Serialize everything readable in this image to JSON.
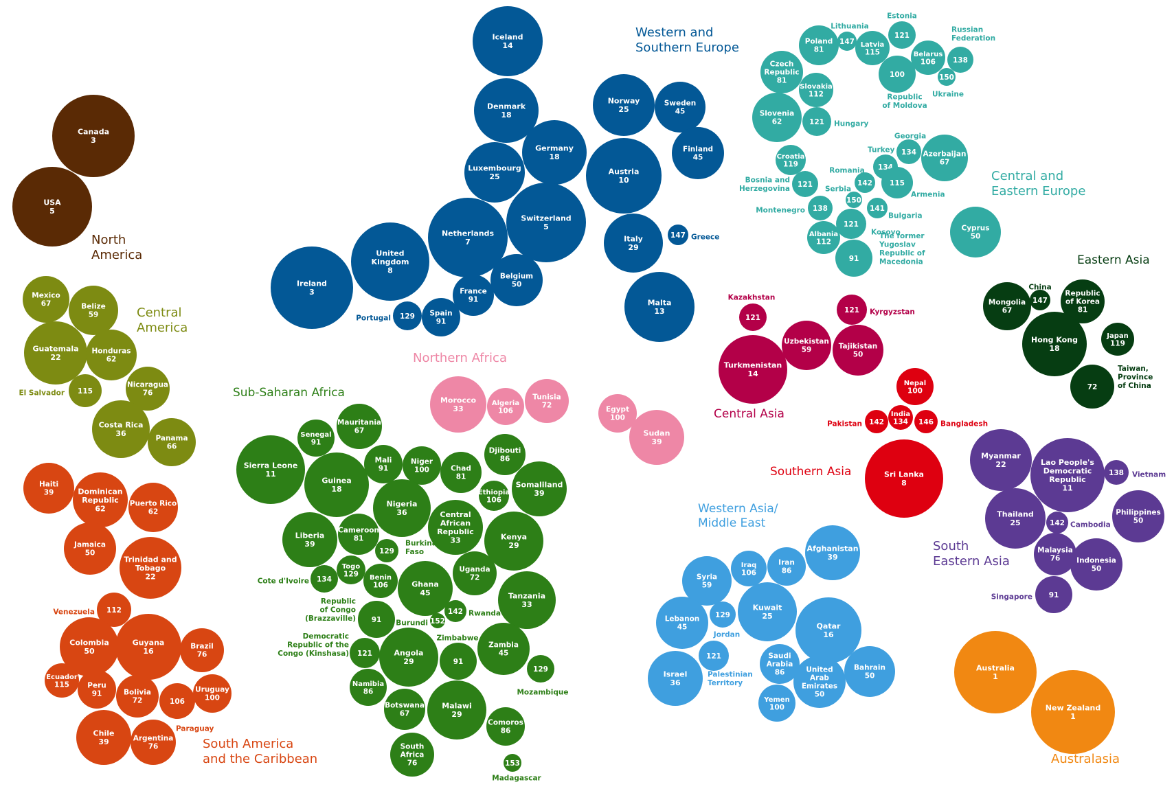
{
  "chart_data": {
    "type": "bubble-cluster",
    "value_note": "",
    "regions": [
      {
        "key": "north_america",
        "title": [
          "North",
          "America"
        ],
        "color": "#5a2a05"
      },
      {
        "key": "central_america",
        "title": [
          "Central",
          "America"
        ],
        "color": "#7d8b12"
      },
      {
        "key": "south_america",
        "title": [
          "South America",
          "and the Caribbean"
        ],
        "color": "#d84612"
      },
      {
        "key": "western_europe",
        "title": [
          "Western and",
          "Southern Europe"
        ],
        "color": "#035896"
      },
      {
        "key": "central_eastern_europe",
        "title": [
          "Central and",
          "Eastern Europe"
        ],
        "color": "#32aba3"
      },
      {
        "key": "sub_saharan_africa",
        "title": [
          "Sub-Saharan Africa"
        ],
        "color": "#2d7f17"
      },
      {
        "key": "northern_africa",
        "title": [
          "Northern Africa"
        ],
        "color": "#ee87a6"
      },
      {
        "key": "central_asia",
        "title": [
          "Central Asia"
        ],
        "color": "#b30048"
      },
      {
        "key": "southern_asia",
        "title": [
          "Southern Asia"
        ],
        "color": "#de0010"
      },
      {
        "key": "eastern_asia",
        "title": [
          "Eastern Asia"
        ],
        "color": "#063d12"
      },
      {
        "key": "south_eastern_asia",
        "title": [
          "South",
          "Eastern Asia"
        ],
        "color": "#5c3a93"
      },
      {
        "key": "western_asia",
        "title": [
          "Western Asia/",
          "Middle East"
        ],
        "color": "#3f9fdf"
      },
      {
        "key": "australasia",
        "title": [
          "Australasia"
        ],
        "color": "#f18812"
      }
    ],
    "countries": [
      {
        "region": "north_america",
        "name": "Canada",
        "value": 3
      },
      {
        "region": "north_america",
        "name": "USA",
        "value": 5
      },
      {
        "region": "central_america",
        "name": "Mexico",
        "value": 67
      },
      {
        "region": "central_america",
        "name": "Belize",
        "value": 59
      },
      {
        "region": "central_america",
        "name": "Guatemala",
        "value": 22
      },
      {
        "region": "central_america",
        "name": "Honduras",
        "value": 62
      },
      {
        "region": "central_america",
        "name": "El Salvador",
        "value": 115
      },
      {
        "region": "central_america",
        "name": "Nicaragua",
        "value": 76
      },
      {
        "region": "central_america",
        "name": "Costa Rica",
        "value": 36
      },
      {
        "region": "central_america",
        "name": "Panama",
        "value": 66
      },
      {
        "region": "south_america",
        "name": "Haiti",
        "value": 39
      },
      {
        "region": "south_america",
        "name": "Dominican Republic",
        "value": 62
      },
      {
        "region": "south_america",
        "name": "Puerto Rico",
        "value": 62
      },
      {
        "region": "south_america",
        "name": "Jamaica",
        "value": 50
      },
      {
        "region": "south_america",
        "name": "Trinidad and Tobago",
        "value": 22
      },
      {
        "region": "south_america",
        "name": "Venezuela",
        "value": 112
      },
      {
        "region": "south_america",
        "name": "Colombia",
        "value": 50
      },
      {
        "region": "south_america",
        "name": "Guyana",
        "value": 16
      },
      {
        "region": "south_america",
        "name": "Brazil",
        "value": 76
      },
      {
        "region": "south_america",
        "name": "Ecuador",
        "value": 115
      },
      {
        "region": "south_america",
        "name": "Peru",
        "value": 91
      },
      {
        "region": "south_america",
        "name": "Bolivia",
        "value": 72
      },
      {
        "region": "south_america",
        "name": "Paraguay",
        "value": 106
      },
      {
        "region": "south_america",
        "name": "Uruguay",
        "value": 100
      },
      {
        "region": "south_america",
        "name": "Chile",
        "value": 39
      },
      {
        "region": "south_america",
        "name": "Argentina",
        "value": 76
      },
      {
        "region": "western_europe",
        "name": "Iceland",
        "value": 14
      },
      {
        "region": "western_europe",
        "name": "Denmark",
        "value": 18
      },
      {
        "region": "western_europe",
        "name": "Germany",
        "value": 18
      },
      {
        "region": "western_europe",
        "name": "Luxembourg",
        "value": 25
      },
      {
        "region": "western_europe",
        "name": "Switzerland",
        "value": 5
      },
      {
        "region": "western_europe",
        "name": "Netherlands",
        "value": 7
      },
      {
        "region": "western_europe",
        "name": "United Kingdom",
        "value": 8
      },
      {
        "region": "western_europe",
        "name": "Ireland",
        "value": 3
      },
      {
        "region": "western_europe",
        "name": "Belgium",
        "value": 50
      },
      {
        "region": "western_europe",
        "name": "France",
        "value": 91
      },
      {
        "region": "western_europe",
        "name": "Spain",
        "value": 91
      },
      {
        "region": "western_europe",
        "name": "Portugal",
        "value": 129
      },
      {
        "region": "western_europe",
        "name": "Norway",
        "value": 25
      },
      {
        "region": "western_europe",
        "name": "Sweden",
        "value": 45
      },
      {
        "region": "western_europe",
        "name": "Finland",
        "value": 45
      },
      {
        "region": "western_europe",
        "name": "Austria",
        "value": 10
      },
      {
        "region": "western_europe",
        "name": "Italy",
        "value": 29
      },
      {
        "region": "western_europe",
        "name": "Greece",
        "value": 147
      },
      {
        "region": "western_europe",
        "name": "Malta",
        "value": 13
      },
      {
        "region": "central_eastern_europe",
        "name": "Lithuania",
        "value": 147
      },
      {
        "region": "central_eastern_europe",
        "name": "Estonia",
        "value": 121
      },
      {
        "region": "central_eastern_europe",
        "name": "Poland",
        "value": 81
      },
      {
        "region": "central_eastern_europe",
        "name": "Latvia",
        "value": 115
      },
      {
        "region": "central_eastern_europe",
        "name": "Russian Federation",
        "value": 138
      },
      {
        "region": "central_eastern_europe",
        "name": "Belarus",
        "value": 106
      },
      {
        "region": "central_eastern_europe",
        "name": "Czech Republic",
        "value": 81
      },
      {
        "region": "central_eastern_europe",
        "name": "Republic of Moldova",
        "value": 100
      },
      {
        "region": "central_eastern_europe",
        "name": "Ukraine",
        "value": 150
      },
      {
        "region": "central_eastern_europe",
        "name": "Slovakia",
        "value": 112
      },
      {
        "region": "central_eastern_europe",
        "name": "Slovenia",
        "value": 62
      },
      {
        "region": "central_eastern_europe",
        "name": "Hungary",
        "value": 121
      },
      {
        "region": "central_eastern_europe",
        "name": "Georgia",
        "value": 134
      },
      {
        "region": "central_eastern_europe",
        "name": "Turkey",
        "value": 134
      },
      {
        "region": "central_eastern_europe",
        "name": "Azerbaijan",
        "value": 67
      },
      {
        "region": "central_eastern_europe",
        "name": "Croatia",
        "value": 119
      },
      {
        "region": "central_eastern_europe",
        "name": "Romania",
        "value": 142
      },
      {
        "region": "central_eastern_europe",
        "name": "Armenia",
        "value": 115
      },
      {
        "region": "central_eastern_europe",
        "name": "Bosnia and Herzegovina",
        "value": 121
      },
      {
        "region": "central_eastern_europe",
        "name": "Serbia",
        "value": 150
      },
      {
        "region": "central_eastern_europe",
        "name": "Bulgaria",
        "value": 141
      },
      {
        "region": "central_eastern_europe",
        "name": "Montenegro",
        "value": 138
      },
      {
        "region": "central_eastern_europe",
        "name": "Kosovo",
        "value": 121
      },
      {
        "region": "central_eastern_europe",
        "name": "Albania",
        "value": 112
      },
      {
        "region": "central_eastern_europe",
        "name": "The former Yugoslav Republic of Macedonia",
        "value": 91
      },
      {
        "region": "central_eastern_europe",
        "name": "Cyprus",
        "value": 50
      },
      {
        "region": "sub_saharan_africa",
        "name": "Senegal",
        "value": 91
      },
      {
        "region": "sub_saharan_africa",
        "name": "Mauritania",
        "value": 67
      },
      {
        "region": "sub_saharan_africa",
        "name": "Sierra Leone",
        "value": 11
      },
      {
        "region": "sub_saharan_africa",
        "name": "Guinea",
        "value": 18
      },
      {
        "region": "sub_saharan_africa",
        "name": "Mali",
        "value": 91
      },
      {
        "region": "sub_saharan_africa",
        "name": "Niger",
        "value": 100
      },
      {
        "region": "sub_saharan_africa",
        "name": "Chad",
        "value": 81
      },
      {
        "region": "sub_saharan_africa",
        "name": "Djibouti",
        "value": 86
      },
      {
        "region": "sub_saharan_africa",
        "name": "Ethiopia",
        "value": 106
      },
      {
        "region": "sub_saharan_africa",
        "name": "Somaliland",
        "value": 39
      },
      {
        "region": "sub_saharan_africa",
        "name": "Nigeria",
        "value": 36
      },
      {
        "region": "sub_saharan_africa",
        "name": "Central African Republic",
        "value": 33
      },
      {
        "region": "sub_saharan_africa",
        "name": "Liberia",
        "value": 39
      },
      {
        "region": "sub_saharan_africa",
        "name": "Cameroon",
        "value": 81
      },
      {
        "region": "sub_saharan_africa",
        "name": "Burkina Faso",
        "value": 129
      },
      {
        "region": "sub_saharan_africa",
        "name": "Kenya",
        "value": 29
      },
      {
        "region": "sub_saharan_africa",
        "name": "Cote d'Ivoire",
        "value": 134
      },
      {
        "region": "sub_saharan_africa",
        "name": "Togo",
        "value": 129
      },
      {
        "region": "sub_saharan_africa",
        "name": "Benin",
        "value": 106
      },
      {
        "region": "sub_saharan_africa",
        "name": "Ghana",
        "value": 45
      },
      {
        "region": "sub_saharan_africa",
        "name": "Uganda",
        "value": 72
      },
      {
        "region": "sub_saharan_africa",
        "name": "Tanzania",
        "value": 33
      },
      {
        "region": "sub_saharan_africa",
        "name": "Rwanda",
        "value": 142
      },
      {
        "region": "sub_saharan_africa",
        "name": "Republic of Congo (Brazzaville)",
        "value": 91
      },
      {
        "region": "sub_saharan_africa",
        "name": "Burundi",
        "value": 152
      },
      {
        "region": "sub_saharan_africa",
        "name": "Democratic Republic of the Congo (Kinshasa)",
        "value": 121
      },
      {
        "region": "sub_saharan_africa",
        "name": "Angola",
        "value": 29
      },
      {
        "region": "sub_saharan_africa",
        "name": "Zimbabwe",
        "value": 91
      },
      {
        "region": "sub_saharan_africa",
        "name": "Zambia",
        "value": 45
      },
      {
        "region": "sub_saharan_africa",
        "name": "Mozambique",
        "value": 129
      },
      {
        "region": "sub_saharan_africa",
        "name": "Namibia",
        "value": 86
      },
      {
        "region": "sub_saharan_africa",
        "name": "Botswana",
        "value": 67
      },
      {
        "region": "sub_saharan_africa",
        "name": "Malawi",
        "value": 29
      },
      {
        "region": "sub_saharan_africa",
        "name": "Comoros",
        "value": 86
      },
      {
        "region": "sub_saharan_africa",
        "name": "South Africa",
        "value": 76
      },
      {
        "region": "sub_saharan_africa",
        "name": "Madagascar",
        "value": 153
      },
      {
        "region": "northern_africa",
        "name": "Morocco",
        "value": 33
      },
      {
        "region": "northern_africa",
        "name": "Algeria",
        "value": 106
      },
      {
        "region": "northern_africa",
        "name": "Tunisia",
        "value": 72
      },
      {
        "region": "northern_africa",
        "name": "Egypt",
        "value": 100
      },
      {
        "region": "northern_africa",
        "name": "Sudan",
        "value": 39
      },
      {
        "region": "central_asia",
        "name": "Kazakhstan",
        "value": 121
      },
      {
        "region": "central_asia",
        "name": "Kyrgyzstan",
        "value": 121
      },
      {
        "region": "central_asia",
        "name": "Uzbekistan",
        "value": 59
      },
      {
        "region": "central_asia",
        "name": "Tajikistan",
        "value": 50
      },
      {
        "region": "central_asia",
        "name": "Turkmenistan",
        "value": 14
      },
      {
        "region": "southern_asia",
        "name": "Nepal",
        "value": 100
      },
      {
        "region": "southern_asia",
        "name": "Pakistan",
        "value": 142
      },
      {
        "region": "southern_asia",
        "name": "India",
        "value": 134
      },
      {
        "region": "southern_asia",
        "name": "Bangladesh",
        "value": 146
      },
      {
        "region": "southern_asia",
        "name": "Sri Lanka",
        "value": 8
      },
      {
        "region": "eastern_asia",
        "name": "China",
        "value": 147
      },
      {
        "region": "eastern_asia",
        "name": "Mongolia",
        "value": 67
      },
      {
        "region": "eastern_asia",
        "name": "Republic of Korea",
        "value": 81
      },
      {
        "region": "eastern_asia",
        "name": "Hong Kong",
        "value": 18
      },
      {
        "region": "eastern_asia",
        "name": "Japan",
        "value": 119
      },
      {
        "region": "eastern_asia",
        "name": "Taiwan, Province of China",
        "value": 72
      },
      {
        "region": "south_eastern_asia",
        "name": "Myanmar",
        "value": 22
      },
      {
        "region": "south_eastern_asia",
        "name": "Lao People's Democratic Republic",
        "value": 11
      },
      {
        "region": "south_eastern_asia",
        "name": "Vietnam",
        "value": 138
      },
      {
        "region": "south_eastern_asia",
        "name": "Thailand",
        "value": 25
      },
      {
        "region": "south_eastern_asia",
        "name": "Cambodia",
        "value": 142
      },
      {
        "region": "south_eastern_asia",
        "name": "Philippines",
        "value": 50
      },
      {
        "region": "south_eastern_asia",
        "name": "Malaysia",
        "value": 76
      },
      {
        "region": "south_eastern_asia",
        "name": "Indonesia",
        "value": 50
      },
      {
        "region": "south_eastern_asia",
        "name": "Singapore",
        "value": 91
      },
      {
        "region": "western_asia",
        "name": "Afghanistan",
        "value": 39
      },
      {
        "region": "western_asia",
        "name": "Syria",
        "value": 59
      },
      {
        "region": "western_asia",
        "name": "Iraq",
        "value": 106
      },
      {
        "region": "western_asia",
        "name": "Iran",
        "value": 86
      },
      {
        "region": "western_asia",
        "name": "Lebanon",
        "value": 45
      },
      {
        "region": "western_asia",
        "name": "Jordan",
        "value": 129
      },
      {
        "region": "western_asia",
        "name": "Kuwait",
        "value": 25
      },
      {
        "region": "western_asia",
        "name": "Qatar",
        "value": 16
      },
      {
        "region": "western_asia",
        "name": "Palestinian Territory",
        "value": 121
      },
      {
        "region": "western_asia",
        "name": "Israel",
        "value": 36
      },
      {
        "region": "western_asia",
        "name": "Saudi Arabia",
        "value": 86
      },
      {
        "region": "western_asia",
        "name": "Bahrain",
        "value": 50
      },
      {
        "region": "western_asia",
        "name": "United Arab Emirates",
        "value": 50
      },
      {
        "region": "western_asia",
        "name": "Yemen",
        "value": 100
      },
      {
        "region": "australasia",
        "name": "Australia",
        "value": 1
      },
      {
        "region": "australasia",
        "name": "New Zealand",
        "value": 1
      }
    ]
  }
}
